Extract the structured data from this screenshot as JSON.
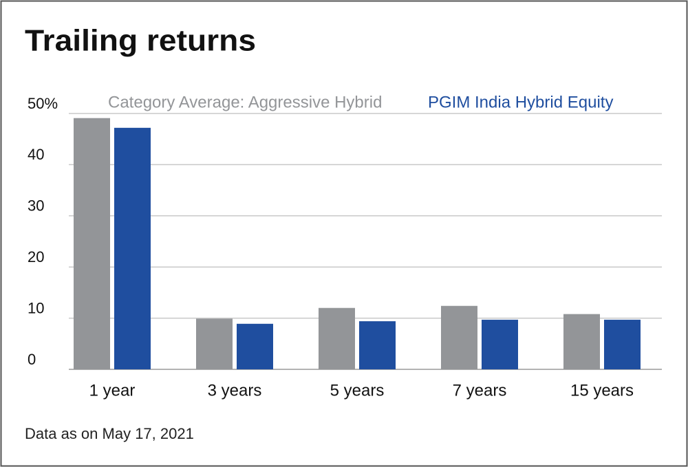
{
  "chart_data": {
    "type": "bar",
    "title": "Trailing returns",
    "categories": [
      "1 year",
      "3 years",
      "5 years",
      "7 years",
      "15 years"
    ],
    "series": [
      {
        "name": "Category Average: Aggressive Hybrid",
        "color": "#939598",
        "values": [
          49.1,
          9.9,
          12.0,
          12.4,
          10.8
        ]
      },
      {
        "name": "PGIM India Hybrid Equity",
        "color": "#1f4e9f",
        "values": [
          47.2,
          8.9,
          9.4,
          9.7,
          9.7
        ]
      }
    ],
    "ylim": [
      0,
      50
    ],
    "yticks": [
      0,
      10,
      20,
      30,
      40,
      {
        "value": 50,
        "label": "50%"
      }
    ],
    "grid": true,
    "note": "Data as on May 17, 2021"
  }
}
